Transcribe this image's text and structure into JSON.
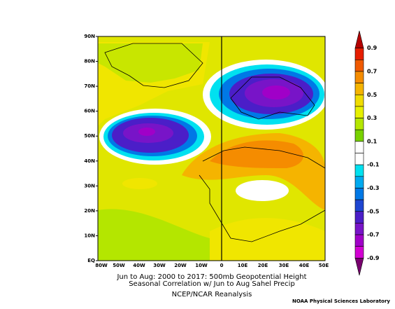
{
  "map": {
    "lat_labels": [
      "90N",
      "80N",
      "70N",
      "60N",
      "50N",
      "40N",
      "30N",
      "20N",
      "10N",
      "EQ"
    ],
    "lon_labels": [
      "80W",
      "50W",
      "40W",
      "30W",
      "20W",
      "10W",
      "0",
      "10E",
      "20E",
      "30E",
      "40E",
      "50E"
    ],
    "caption": [
      "Jun to Aug: 2000 to 2017: 500mb Geopotential Height",
      "Seasonal Correlation w/ Jun to Aug Sahel Precip"
    ],
    "source": "NCEP/NCAR Reanalysis"
  },
  "colorbar": {
    "labels": [
      0.9,
      0.7,
      0.5,
      0.3,
      0.1,
      -0.1,
      -0.3,
      -0.5,
      -0.7,
      -0.9
    ],
    "colors": [
      "#b40000",
      "#e61e00",
      "#f05a00",
      "#f58c00",
      "#f5b400",
      "#f0dc00",
      "#e6f000",
      "#b4e600",
      "#78d200",
      "#ffffff",
      "#ffffff",
      "#00e1f0",
      "#00aaf0",
      "#0078e6",
      "#1e46d2",
      "#4b1ec8",
      "#7814c8",
      "#a000c8",
      "#d200d2",
      "#78006e"
    ]
  },
  "footer": "NOAA Physical Sciences Laboratory"
}
